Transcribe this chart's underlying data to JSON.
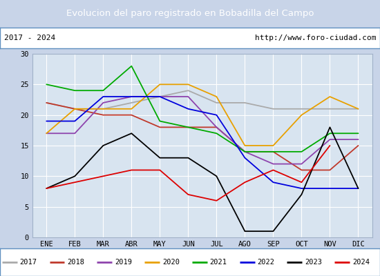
{
  "title": "Evolucion del paro registrado en Bobadilla del Campo",
  "subtitle_left": "2017 - 2024",
  "subtitle_right": "http://www.foro-ciudad.com",
  "title_bg_color": "#4d7ebf",
  "title_text_color": "#ffffff",
  "bg_color": "#c8d4e8",
  "plot_bg_color": "#d8e4f0",
  "months": [
    "ENE",
    "FEB",
    "MAR",
    "ABR",
    "MAY",
    "JUN",
    "JUL",
    "AGO",
    "SEP",
    "OCT",
    "NOV",
    "DIC"
  ],
  "ylim": [
    0,
    30
  ],
  "yticks": [
    0,
    5,
    10,
    15,
    20,
    25,
    30
  ],
  "series": [
    {
      "year": "2017",
      "color": "#aaaaaa",
      "data": [
        22,
        21,
        21,
        22,
        23,
        24,
        22,
        22,
        21,
        21,
        21,
        21
      ]
    },
    {
      "year": "2018",
      "color": "#c0392b",
      "data": [
        22,
        21,
        20,
        20,
        18,
        18,
        18,
        14,
        14,
        11,
        11,
        15
      ]
    },
    {
      "year": "2019",
      "color": "#8e44ad",
      "data": [
        17,
        17,
        22,
        23,
        23,
        23,
        18,
        14,
        12,
        12,
        16,
        16
      ]
    },
    {
      "year": "2020",
      "color": "#e8a000",
      "data": [
        17,
        21,
        21,
        21,
        25,
        25,
        23,
        15,
        15,
        20,
        23,
        21
      ]
    },
    {
      "year": "2021",
      "color": "#00aa00",
      "data": [
        25,
        24,
        24,
        28,
        19,
        18,
        17,
        14,
        14,
        14,
        17,
        17
      ]
    },
    {
      "year": "2022",
      "color": "#0000dd",
      "data": [
        19,
        19,
        23,
        23,
        23,
        21,
        20,
        13,
        9,
        8,
        8,
        8
      ]
    },
    {
      "year": "2023",
      "color": "#000000",
      "data": [
        8,
        10,
        15,
        17,
        13,
        13,
        10,
        1,
        1,
        7,
        18,
        8
      ]
    },
    {
      "year": "2024",
      "color": "#dd0000",
      "data": [
        8,
        9,
        10,
        11,
        11,
        7,
        6,
        9,
        11,
        9,
        15,
        null
      ]
    }
  ]
}
